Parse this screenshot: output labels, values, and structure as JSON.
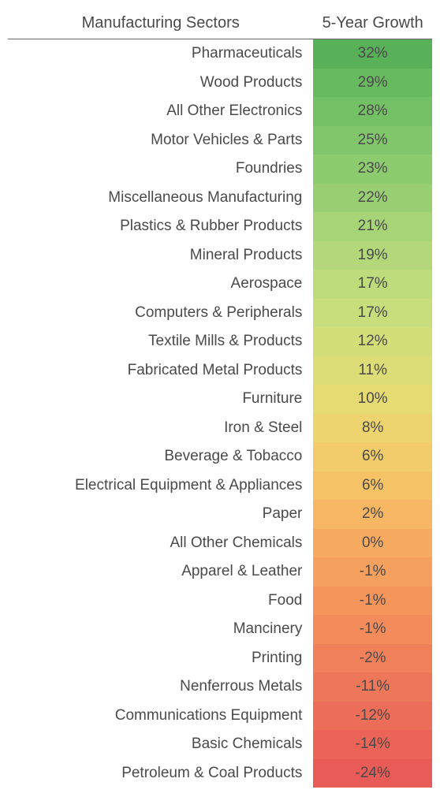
{
  "table": {
    "type": "table-heatmap",
    "columns": [
      "Manufacturing Sectors",
      "5-Year Growth"
    ],
    "header_fontsize": 20,
    "cell_fontsize": 19,
    "text_color": "#4a4a4a",
    "header_border_color": "#666666",
    "background_color": "#ffffff",
    "column_alignment": [
      "right",
      "center"
    ],
    "rows": [
      {
        "sector": "Pharmaceuticals",
        "growth_pct": 32,
        "value": "32%",
        "bg": "#58b158"
      },
      {
        "sector": "Wood Products",
        "growth_pct": 29,
        "value": "29%",
        "bg": "#68ba5e"
      },
      {
        "sector": "All Other Electronics",
        "growth_pct": 28,
        "value": "28%",
        "bg": "#74c064"
      },
      {
        "sector": "Motor Vehicles & Parts",
        "growth_pct": 25,
        "value": "25%",
        "bg": "#81c66a"
      },
      {
        "sector": "Foundries",
        "growth_pct": 23,
        "value": "23%",
        "bg": "#8dcb6f"
      },
      {
        "sector": "Miscellaneous Manufacturing",
        "growth_pct": 22,
        "value": "22%",
        "bg": "#99cf73"
      },
      {
        "sector": "Plastics & Rubber Products",
        "growth_pct": 21,
        "value": "21%",
        "bg": "#a6d477"
      },
      {
        "sector": "Mineral Products",
        "growth_pct": 19,
        "value": "19%",
        "bg": "#b3d87a"
      },
      {
        "sector": "Aerospace",
        "growth_pct": 17,
        "value": "17%",
        "bg": "#bedc7c"
      },
      {
        "sector": "Computers & Peripherals",
        "growth_pct": 17,
        "value": "17%",
        "bg": "#c8de7c"
      },
      {
        "sector": "Textile Mills & Products",
        "growth_pct": 12,
        "value": "12%",
        "bg": "#d3de79"
      },
      {
        "sector": "Fabricated Metal Products",
        "growth_pct": 11,
        "value": "11%",
        "bg": "#dcdd76"
      },
      {
        "sector": "Furniture",
        "growth_pct": 10,
        "value": "10%",
        "bg": "#e6da72"
      },
      {
        "sector": "Iron & Steel",
        "growth_pct": 8,
        "value": "8%",
        "bg": "#edd46e"
      },
      {
        "sector": "Beverage & Tobacco",
        "growth_pct": 6,
        "value": "6%",
        "bg": "#f2cc6a"
      },
      {
        "sector": "Electrical Equipment & Appliances",
        "growth_pct": 6,
        "value": "6%",
        "bg": "#f5c266"
      },
      {
        "sector": "Paper",
        "growth_pct": 2,
        "value": "2%",
        "bg": "#f6b663"
      },
      {
        "sector": "All Other Chemicals",
        "growth_pct": 0,
        "value": "0%",
        "bg": "#f6ab60"
      },
      {
        "sector": "Apparel & Leather",
        "growth_pct": -1,
        "value": "-1%",
        "bg": "#f5a05e"
      },
      {
        "sector": "Food",
        "growth_pct": -1,
        "value": "-1%",
        "bg": "#f4955c"
      },
      {
        "sector": "Mancinery",
        "growth_pct": -1,
        "value": "-1%",
        "bg": "#f38b5b"
      },
      {
        "sector": "Printing",
        "growth_pct": -2,
        "value": "-2%",
        "bg": "#f1815a"
      },
      {
        "sector": "Nenferrous Metals",
        "growth_pct": -11,
        "value": "-11%",
        "bg": "#ef7759"
      },
      {
        "sector": "Communications Equipment",
        "growth_pct": -12,
        "value": "-12%",
        "bg": "#ed6e58"
      },
      {
        "sector": "Basic Chemicals",
        "growth_pct": -14,
        "value": "-14%",
        "bg": "#eb6457"
      },
      {
        "sector": "Petroleum & Coal Products",
        "growth_pct": -24,
        "value": "-24%",
        "bg": "#e85b56"
      }
    ]
  }
}
